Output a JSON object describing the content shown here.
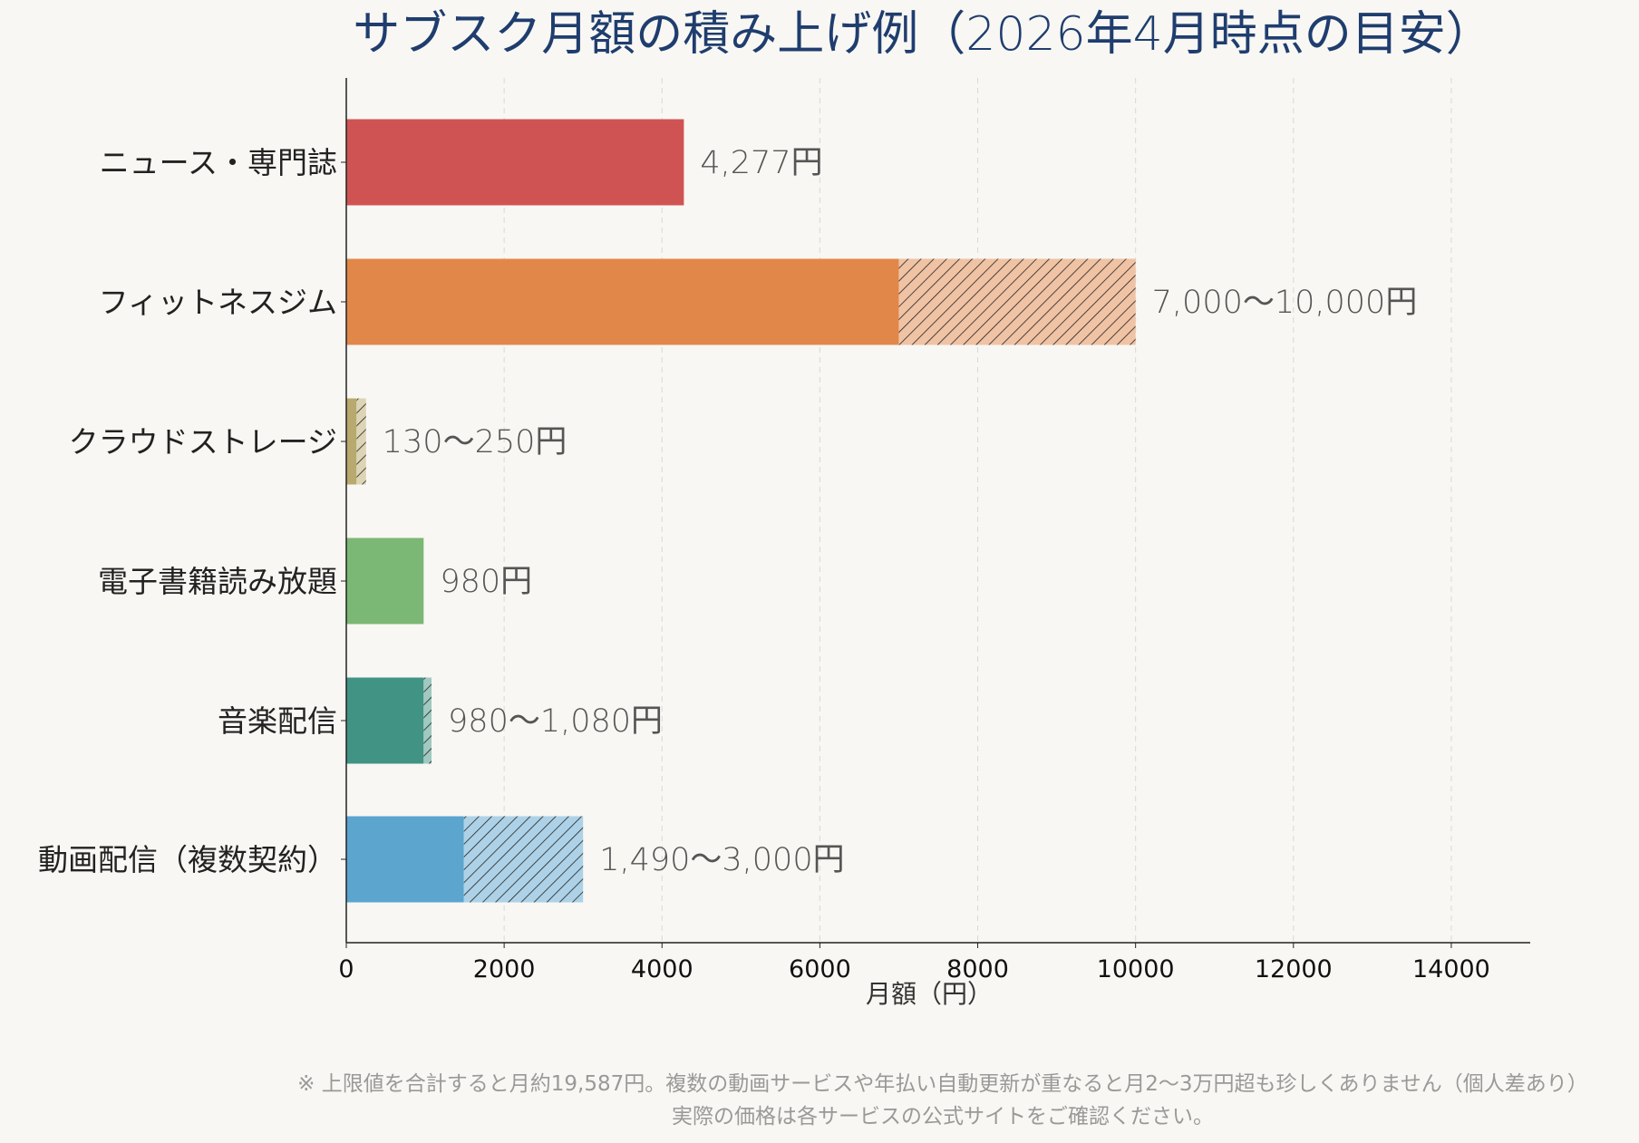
{
  "chart_data": {
    "type": "bar",
    "orientation": "horizontal",
    "stacked_range": true,
    "title": "サブスク月額の積み上げ例（2026年4月時点の目安）",
    "xlabel": "月額（円）",
    "ylabel": "",
    "xlim": [
      0,
      15000
    ],
    "xticks": [
      0,
      2000,
      4000,
      6000,
      8000,
      10000,
      12000,
      14000
    ],
    "grid": "x-dashed",
    "categories": [
      "ニュース・専門誌",
      "フィットネスジム",
      "クラウドストレージ",
      "電子書籍読み放題",
      "音楽配信",
      "動画配信（複数契約）"
    ],
    "low": [
      4277,
      7000,
      130,
      980,
      980,
      1490
    ],
    "high": [
      4277,
      10000,
      250,
      980,
      1080,
      3000
    ],
    "data_labels": [
      "4,277円",
      "7,000〜10,000円",
      "130〜250円",
      "980円",
      "980〜1,080円",
      "1,490〜3,000円"
    ],
    "colors": [
      "#d05353",
      "#e2874a",
      "#b8a96e",
      "#7bb775",
      "#419383",
      "#5ba5cf"
    ],
    "hatch_colors": [
      "#eba9a9",
      "#f0c3a4",
      "#ddd4b6",
      "#bddbba",
      "#a0c9c1",
      "#add2e7"
    ],
    "notes": [
      "※ 上限値を合計すると月約19,587円。複数の動画サービスや年払い自動更新が重なると月2〜3万円超も珍しくありません（個人差あり）",
      "実際の価格は各サービスの公式サイトをご確認ください。"
    ]
  }
}
